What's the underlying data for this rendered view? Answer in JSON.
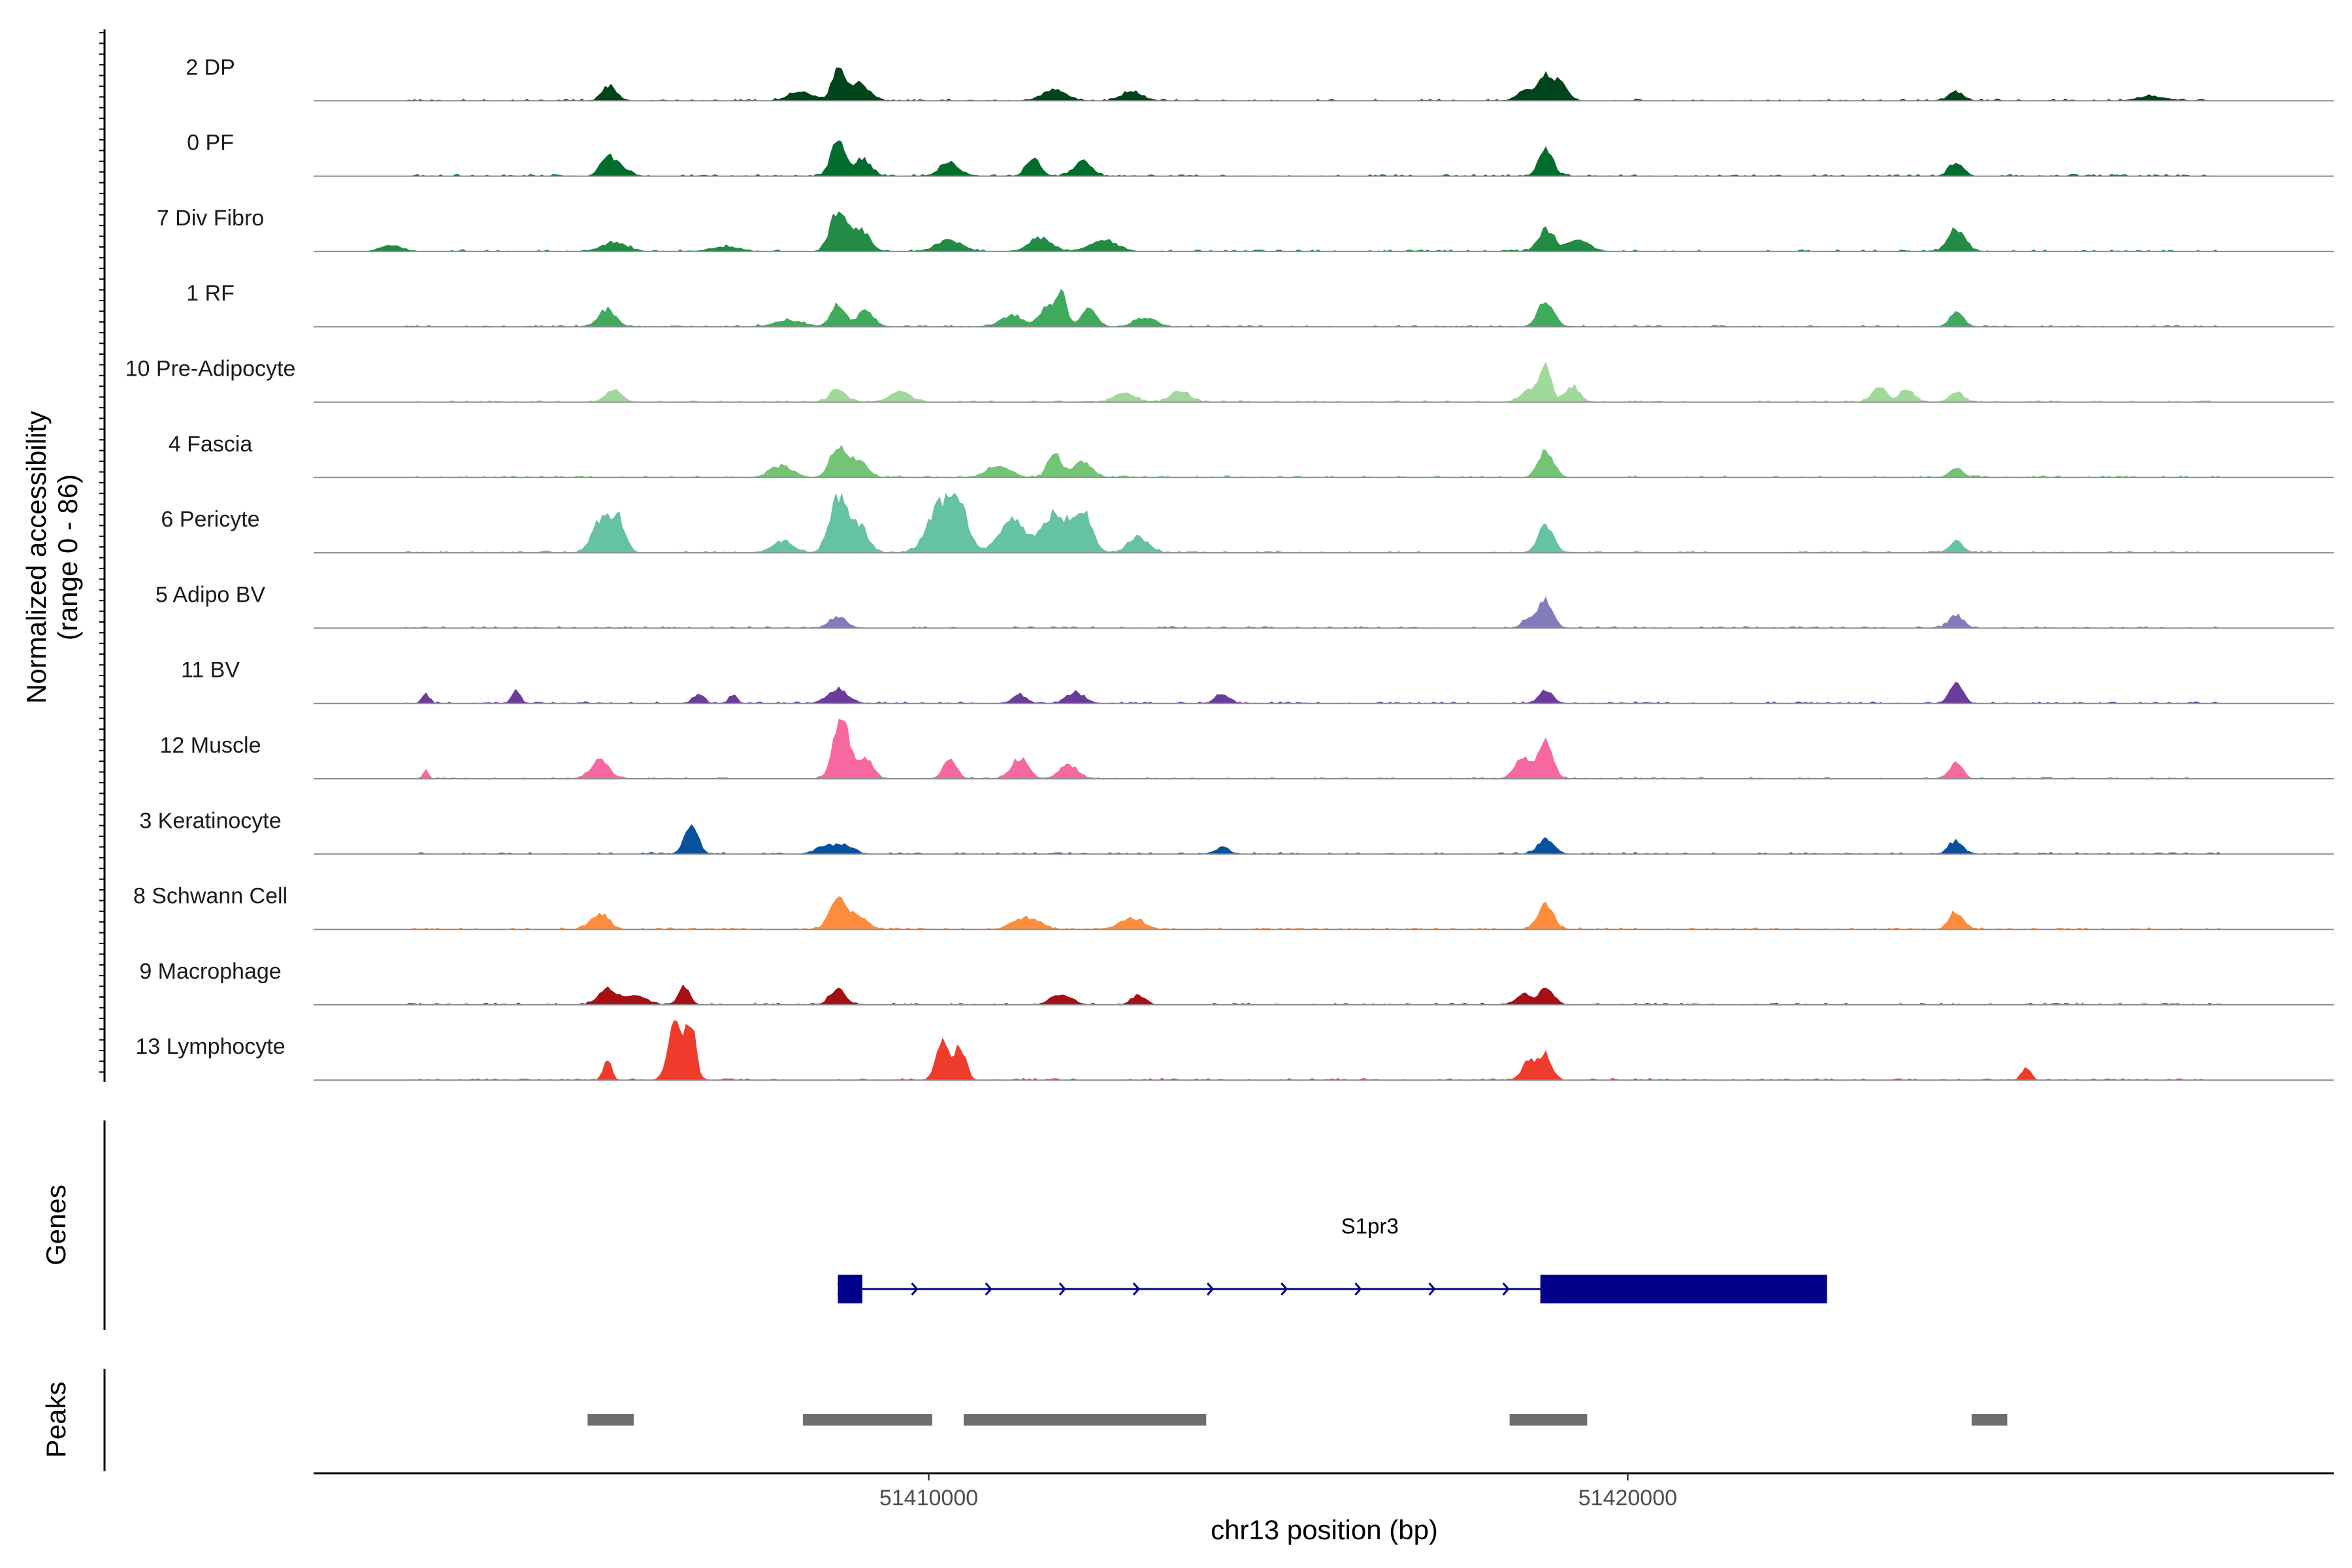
{
  "chart_data": {
    "type": "area",
    "ylabel_line1": "Normalized accessibility",
    "ylabel_line2": "(range 0 - 86)",
    "xlabel": "chr13 position (bp)",
    "xlim": [
      51401200,
      51430100
    ],
    "ylim": [
      0,
      86
    ],
    "xticks": [
      {
        "value": 51410000,
        "label": "51410000"
      },
      {
        "value": 51420000,
        "label": "51420000"
      }
    ],
    "tracks": [
      {
        "name": "2 DP",
        "color": "#00441b",
        "seed": 11,
        "peaks": [
          [
            51405440,
            7,
            100
          ],
          [
            51408150,
            4,
            160
          ],
          [
            51408700,
            14,
            90
          ],
          [
            51409000,
            8,
            140
          ],
          [
            51411800,
            5,
            170
          ],
          [
            51412900,
            4,
            150
          ],
          [
            51418550,
            5,
            120
          ],
          [
            51418830,
            12,
            90
          ],
          [
            51419050,
            9,
            90
          ],
          [
            51424700,
            4,
            110
          ],
          [
            51427500,
            2,
            200
          ]
        ]
      },
      {
        "name": "0 PF",
        "color": "#006d2c",
        "seed": 23,
        "peaks": [
          [
            51405400,
            9,
            100
          ],
          [
            51405600,
            4,
            100
          ],
          [
            51408700,
            16,
            100
          ],
          [
            51409050,
            8,
            120
          ],
          [
            51410300,
            6,
            140
          ],
          [
            51411500,
            8,
            100
          ],
          [
            51412200,
            7,
            120
          ],
          [
            51418830,
            13,
            100
          ],
          [
            51424700,
            6,
            100
          ]
        ]
      },
      {
        "name": "7 Div Fibro",
        "color": "#238b45",
        "seed": 37,
        "peaks": [
          [
            51402300,
            3,
            150
          ],
          [
            51405500,
            4,
            180
          ],
          [
            51407100,
            2,
            200
          ],
          [
            51408700,
            18,
            110
          ],
          [
            51409000,
            10,
            140
          ],
          [
            51410300,
            5,
            180
          ],
          [
            51411600,
            6,
            160
          ],
          [
            51412500,
            5,
            200
          ],
          [
            51418830,
            10,
            110
          ],
          [
            51419300,
            5,
            160
          ],
          [
            51424700,
            10,
            120
          ]
        ]
      },
      {
        "name": "1 RF",
        "color": "#41ab5d",
        "seed": 41,
        "peaks": [
          [
            51405400,
            8,
            120
          ],
          [
            51408000,
            3,
            200
          ],
          [
            51408700,
            10,
            100
          ],
          [
            51409100,
            7,
            120
          ],
          [
            51411200,
            5,
            170
          ],
          [
            51411700,
            10,
            100
          ],
          [
            51411900,
            16,
            70
          ],
          [
            51412300,
            8,
            110
          ],
          [
            51413100,
            4,
            160
          ],
          [
            51418830,
            12,
            110
          ],
          [
            51424700,
            6,
            100
          ]
        ]
      },
      {
        "name": "10 Pre-Adipocyte",
        "color": "#a1d99b",
        "seed": 53,
        "peaks": [
          [
            51405500,
            6,
            110
          ],
          [
            51408700,
            6,
            110
          ],
          [
            51409600,
            5,
            140
          ],
          [
            51412800,
            4,
            150
          ],
          [
            51413600,
            5,
            140
          ],
          [
            51418600,
            6,
            120
          ],
          [
            51418830,
            18,
            70
          ],
          [
            51419200,
            7,
            110
          ],
          [
            51423600,
            7,
            100
          ],
          [
            51424000,
            6,
            100
          ],
          [
            51424700,
            4,
            100
          ]
        ]
      },
      {
        "name": "4 Fascia",
        "color": "#74c476",
        "seed": 67,
        "peaks": [
          [
            51407900,
            5,
            160
          ],
          [
            51408700,
            14,
            110
          ],
          [
            51409000,
            8,
            120
          ],
          [
            51411000,
            5,
            170
          ],
          [
            51411800,
            12,
            90
          ],
          [
            51412200,
            7,
            130
          ],
          [
            51418830,
            12,
            110
          ],
          [
            51424700,
            4,
            100
          ]
        ]
      },
      {
        "name": "6 Pericyte",
        "color": "#66c2a4",
        "seed": 79,
        "peaks": [
          [
            51405300,
            14,
            120
          ],
          [
            51405550,
            16,
            100
          ],
          [
            51407900,
            5,
            150
          ],
          [
            51408700,
            25,
            120
          ],
          [
            51409000,
            12,
            130
          ],
          [
            51410100,
            17,
            150
          ],
          [
            51410400,
            24,
            150
          ],
          [
            51411200,
            15,
            180
          ],
          [
            51411800,
            17,
            180
          ],
          [
            51412200,
            18,
            130
          ],
          [
            51413000,
            7,
            140
          ],
          [
            51418830,
            12,
            110
          ],
          [
            51424700,
            5,
            100
          ]
        ]
      },
      {
        "name": "5 Adipo BV",
        "color": "#807dba",
        "seed": 83,
        "peaks": [
          [
            51408700,
            5,
            120
          ],
          [
            51418600,
            4,
            100
          ],
          [
            51418830,
            12,
            100
          ],
          [
            51424700,
            6,
            100
          ]
        ]
      },
      {
        "name": "11 BV",
        "color": "#6a3d9a",
        "seed": 97,
        "peaks": [
          [
            51402800,
            5,
            50
          ],
          [
            51404100,
            6,
            60
          ],
          [
            51406700,
            4,
            80
          ],
          [
            51407200,
            4,
            60
          ],
          [
            51408700,
            6,
            150
          ],
          [
            51411300,
            4,
            100
          ],
          [
            51412100,
            5,
            130
          ],
          [
            51414200,
            4,
            100
          ],
          [
            51418830,
            6,
            100
          ],
          [
            51424700,
            10,
            90
          ]
        ]
      },
      {
        "name": "12 Muscle",
        "color": "#f768a1",
        "seed": 101,
        "peaks": [
          [
            51402800,
            4,
            40
          ],
          [
            51405300,
            8,
            130
          ],
          [
            51408750,
            28,
            110
          ],
          [
            51409100,
            8,
            110
          ],
          [
            51410300,
            10,
            90
          ],
          [
            51411300,
            9,
            120
          ],
          [
            51412000,
            6,
            130
          ],
          [
            51418500,
            10,
            110
          ],
          [
            51418830,
            18,
            100
          ],
          [
            51424700,
            8,
            90
          ]
        ]
      },
      {
        "name": "3 Keratinocyte",
        "color": "#08519c",
        "seed": 113,
        "peaks": [
          [
            51406600,
            12,
            100
          ],
          [
            51408500,
            3,
            130
          ],
          [
            51408800,
            4,
            130
          ],
          [
            51418830,
            7,
            110
          ],
          [
            51424700,
            6,
            100
          ],
          [
            51414200,
            3,
            100
          ]
        ]
      },
      {
        "name": "8 Schwann Cell",
        "color": "#fd8d3c",
        "seed": 127,
        "peaks": [
          [
            51405300,
            7,
            130
          ],
          [
            51408700,
            13,
            120
          ],
          [
            51409000,
            6,
            130
          ],
          [
            51411400,
            5,
            180
          ],
          [
            51412900,
            5,
            170
          ],
          [
            51418830,
            11,
            110
          ],
          [
            51424700,
            8,
            100
          ]
        ]
      },
      {
        "name": "9 Macrophage",
        "color": "#a50f15",
        "seed": 131,
        "peaks": [
          [
            51405400,
            7,
            130
          ],
          [
            51405800,
            4,
            160
          ],
          [
            51406500,
            8,
            80
          ],
          [
            51408700,
            7,
            110
          ],
          [
            51411900,
            5,
            140
          ],
          [
            51413000,
            4,
            100
          ],
          [
            51418500,
            4,
            110
          ],
          [
            51418830,
            8,
            100
          ]
        ]
      },
      {
        "name": "13 Lymphocyte",
        "color": "#ef3b2c",
        "seed": 149,
        "peaks": [
          [
            51406380,
            28,
            100
          ],
          [
            51406600,
            24,
            70
          ],
          [
            51405400,
            9,
            60
          ],
          [
            51410200,
            18,
            90
          ],
          [
            51410450,
            15,
            80
          ],
          [
            51418600,
            9,
            100
          ],
          [
            51418830,
            11,
            90
          ],
          [
            51425700,
            6,
            60
          ]
        ]
      }
    ],
    "genes": [
      {
        "name": "S1pr3",
        "strand": "+",
        "start": 51408700,
        "end": 51422800,
        "color": "#00008b",
        "exons": [
          [
            51408700,
            51409050
          ],
          [
            51418750,
            51422850
          ]
        ]
      }
    ],
    "peaks": [
      {
        "start": 51405120,
        "end": 51405780
      },
      {
        "start": 51408200,
        "end": 51410050
      },
      {
        "start": 51410500,
        "end": 51413970
      },
      {
        "start": 51418310,
        "end": 51419420
      },
      {
        "start": 51424920,
        "end": 51425430
      }
    ],
    "panel_labels": {
      "genes": "Genes",
      "peaks": "Peaks"
    },
    "peak_color": "#6e6e6e",
    "baseline_color": "#8a8a8a"
  }
}
